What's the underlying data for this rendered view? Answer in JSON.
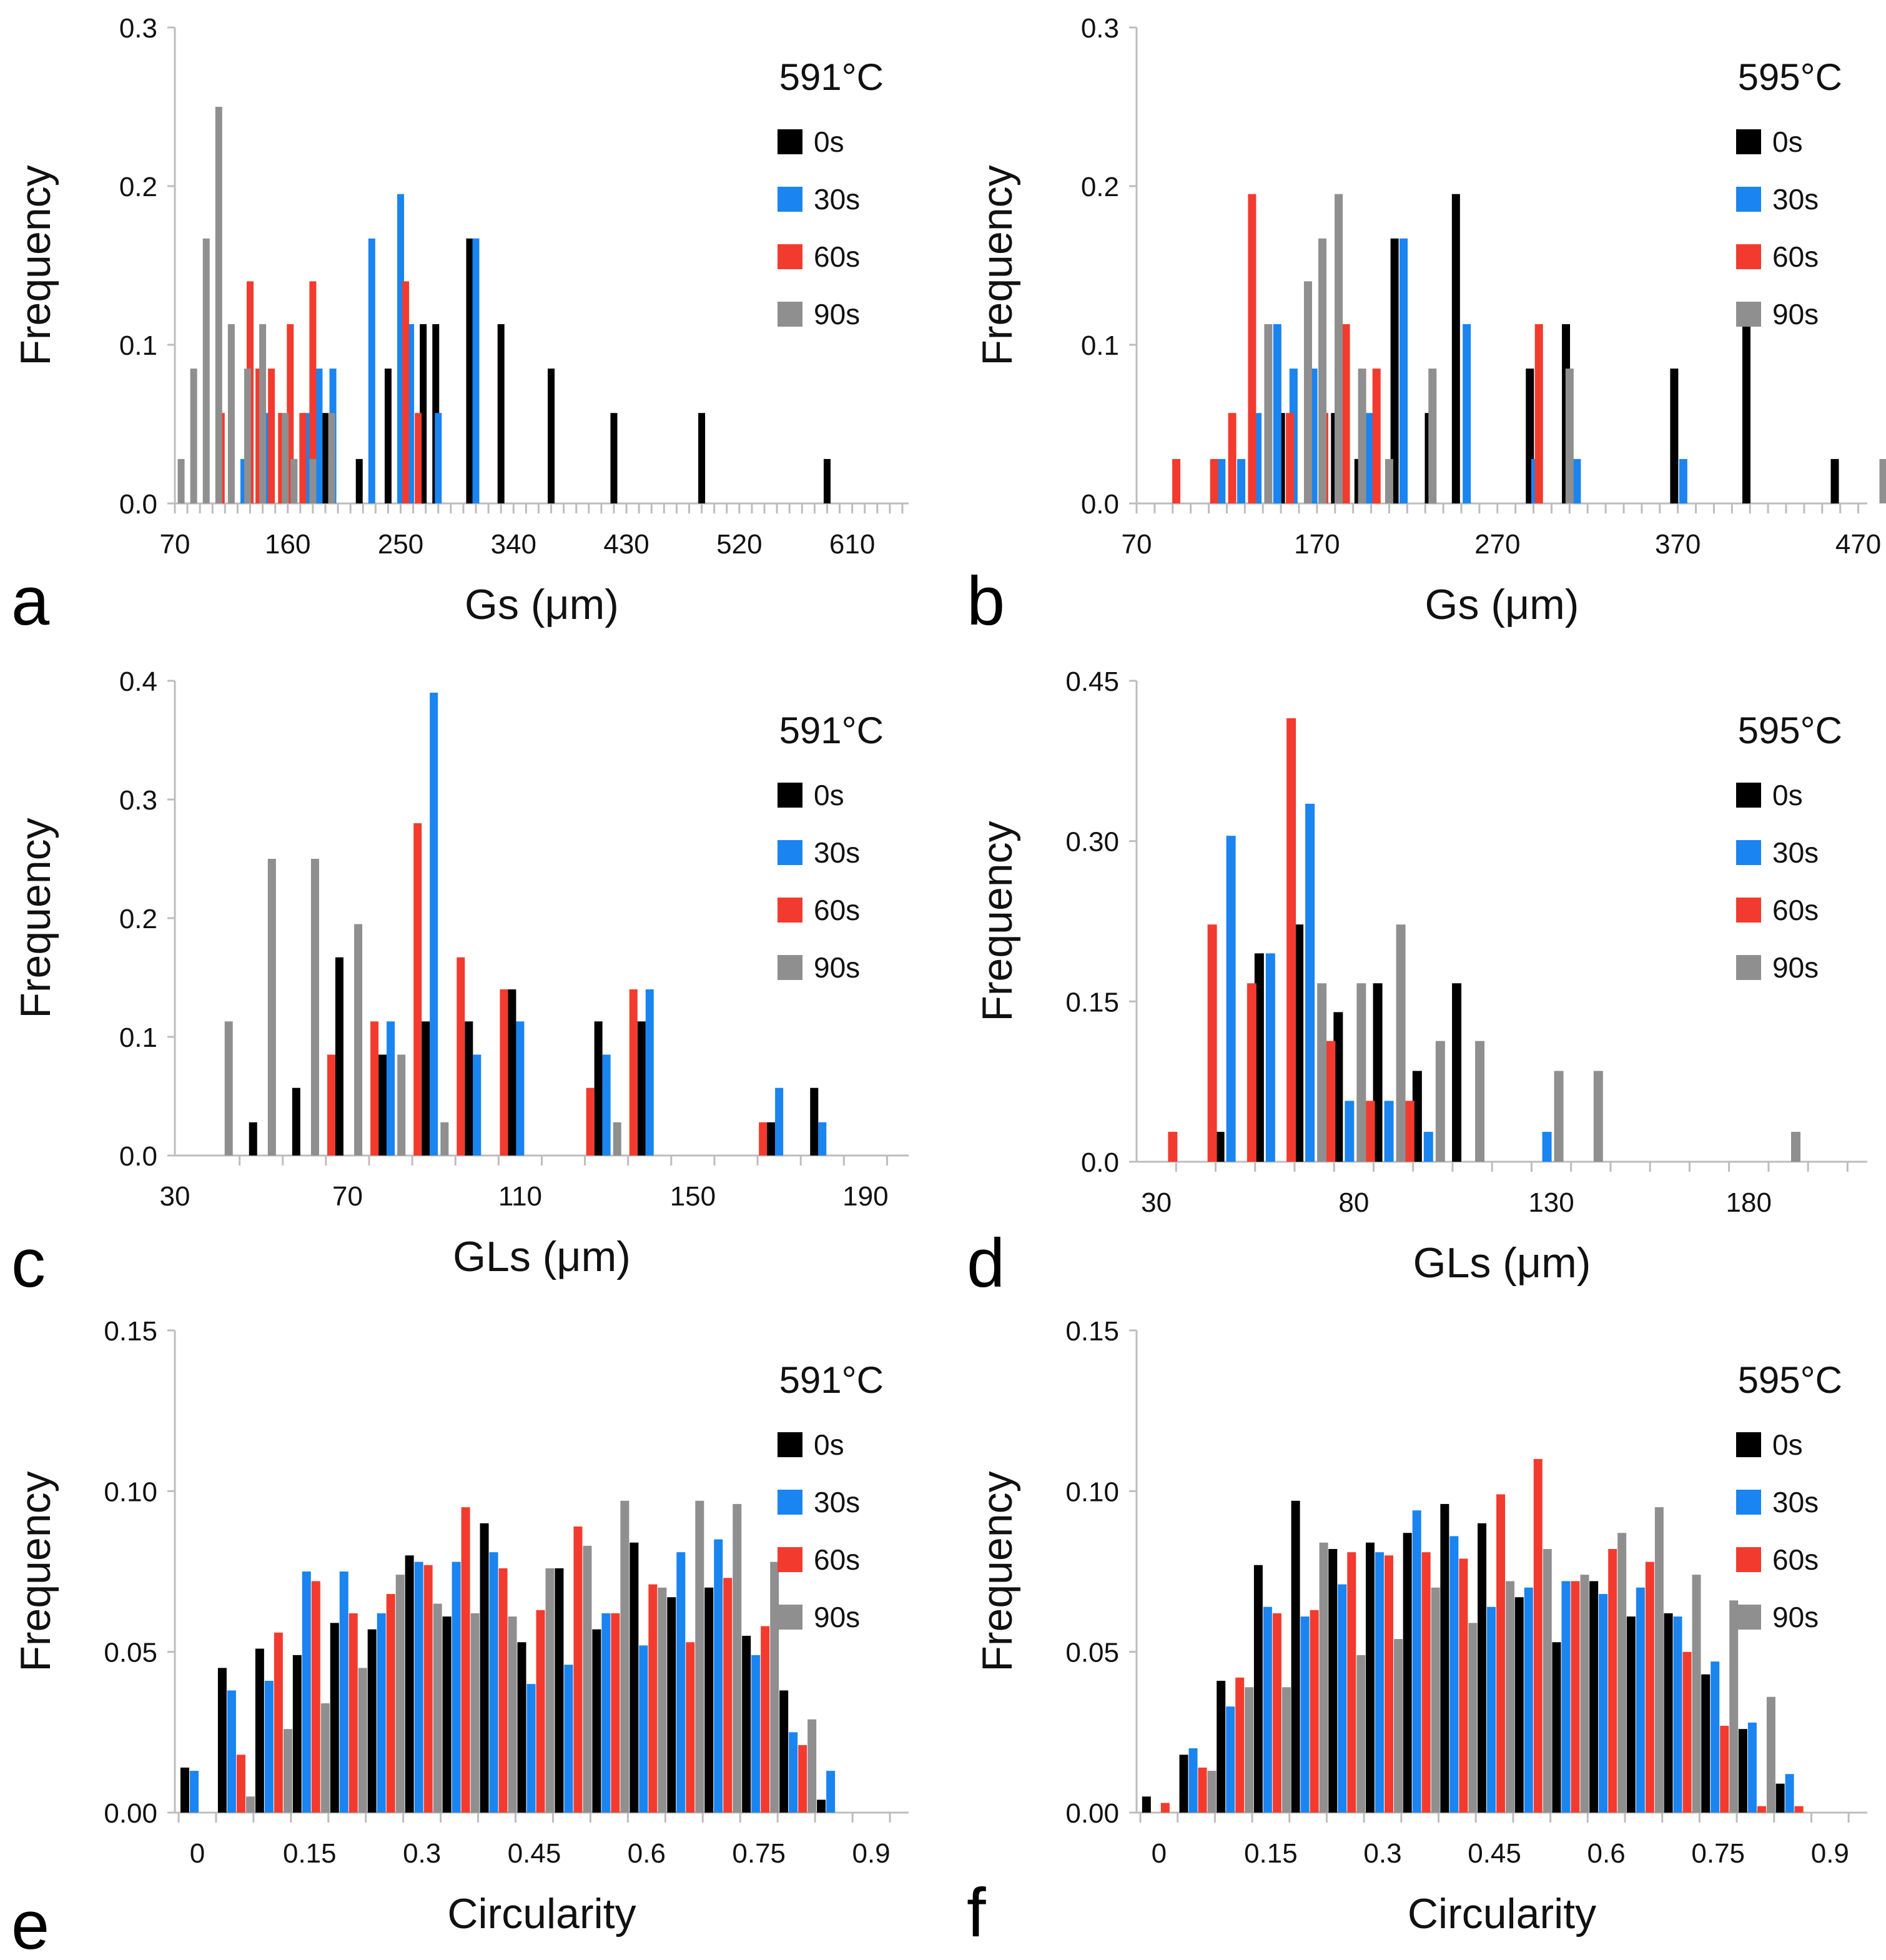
{
  "figure": {
    "series_colors": {
      "0s": "#000000",
      "30s": "#1a84f0",
      "60s": "#f23b2e",
      "90s": "#8f8f8f"
    }
  },
  "chart_data": [
    {
      "panel": "a",
      "type": "bar",
      "title": "591°C",
      "xlabel": "Gs (μm)",
      "ylabel": "Frequency",
      "xlim": [
        70,
        655
      ],
      "xticks": [
        70,
        160,
        250,
        340,
        430,
        520,
        610
      ],
      "ylim": [
        0,
        0.3
      ],
      "yticks": [
        "0.0",
        "0.1",
        "0.2",
        "0.3"
      ],
      "legend": [
        "0s",
        "30s",
        "60s",
        "90s"
      ],
      "series": [
        {
          "name": "0s",
          "points": [
            [
              190,
              0.057
            ],
            [
              217,
              0.028
            ],
            [
              240,
              0.085
            ],
            [
              268,
              0.113
            ],
            [
              278,
              0.113
            ],
            [
              305,
              0.167
            ],
            [
              330,
              0.113
            ],
            [
              370,
              0.085
            ],
            [
              420,
              0.057
            ],
            [
              490,
              0.057
            ],
            [
              590,
              0.028
            ]
          ]
        },
        {
          "name": "30s",
          "points": [
            [
              125,
              0.028
            ],
            [
              145,
              0.057
            ],
            [
              164,
              0.028
            ],
            [
              175,
              0.057
            ],
            [
              185,
              0.085
            ],
            [
              196,
              0.085
            ],
            [
              227,
              0.167
            ],
            [
              250,
              0.195
            ],
            [
              258,
              0.113
            ],
            [
              280,
              0.057
            ],
            [
              310,
              0.167
            ]
          ]
        },
        {
          "name": "60s",
          "points": [
            [
              107,
              0.057
            ],
            [
              130,
              0.14
            ],
            [
              137,
              0.085
            ],
            [
              147,
              0.085
            ],
            [
              155,
              0.057
            ],
            [
              162,
              0.113
            ],
            [
              172,
              0.057
            ],
            [
              180,
              0.14
            ],
            [
              195,
              0.028
            ],
            [
              254,
              0.14
            ],
            [
              264,
              0.057
            ]
          ]
        },
        {
          "name": "90s",
          "points": [
            [
              75,
              0.028
            ],
            [
              85,
              0.085
            ],
            [
              95,
              0.167
            ],
            [
              105,
              0.25
            ],
            [
              115,
              0.113
            ],
            [
              128,
              0.085
            ],
            [
              140,
              0.113
            ],
            [
              158,
              0.057
            ],
            [
              165,
              0.028
            ],
            [
              180,
              0.028
            ],
            [
              195,
              0.057
            ]
          ]
        }
      ]
    },
    {
      "panel": "b",
      "type": "bar",
      "title": "595°C",
      "xlabel": "Gs (μm)",
      "ylabel": "Frequency",
      "xlim": [
        70,
        475
      ],
      "xticks": [
        70,
        170,
        270,
        370,
        470
      ],
      "ylim": [
        0,
        0.3
      ],
      "yticks": [
        "0.0",
        "0.1",
        "0.2",
        "0.3"
      ],
      "legend": [
        "0s",
        "30s",
        "60s",
        "90s"
      ],
      "series": [
        {
          "name": "0s",
          "points": [
            [
              150,
              0.057
            ],
            [
              180,
              0.057
            ],
            [
              193,
              0.028
            ],
            [
              213,
              0.167
            ],
            [
              232,
              0.057
            ],
            [
              247,
              0.195
            ],
            [
              288,
              0.085
            ],
            [
              308,
              0.113
            ],
            [
              368,
              0.085
            ],
            [
              408,
              0.113
            ],
            [
              457,
              0.028
            ]
          ]
        },
        {
          "name": "30s",
          "points": [
            [
              117,
              0.028
            ],
            [
              128,
              0.028
            ],
            [
              137,
              0.057
            ],
            [
              148,
              0.113
            ],
            [
              157,
              0.085
            ],
            [
              168,
              0.085
            ],
            [
              182,
              0.085
            ],
            [
              199,
              0.057
            ],
            [
              218,
              0.167
            ],
            [
              253,
              0.113
            ],
            [
              291,
              0.028
            ],
            [
              314,
              0.028
            ],
            [
              373,
              0.028
            ]
          ]
        },
        {
          "name": "60s",
          "points": [
            [
              92,
              0.028
            ],
            [
              113,
              0.028
            ],
            [
              123,
              0.057
            ],
            [
              134,
              0.195
            ],
            [
              155,
              0.057
            ],
            [
              174,
              0.057
            ],
            [
              186,
              0.113
            ],
            [
              203,
              0.085
            ],
            [
              293,
              0.113
            ]
          ]
        },
        {
          "name": "90s",
          "points": [
            [
              143,
              0.113
            ],
            [
              165,
              0.14
            ],
            [
              173,
              0.167
            ],
            [
              182,
              0.195
            ],
            [
              195,
              0.085
            ],
            [
              210,
              0.028
            ],
            [
              234,
              0.085
            ],
            [
              310,
              0.085
            ],
            [
              484,
              0.028
            ]
          ]
        }
      ]
    },
    {
      "panel": "c",
      "type": "bar",
      "title": "591°C",
      "xlabel": "GLs (μm)",
      "ylabel": "Frequency",
      "xlim": [
        30,
        200
      ],
      "xticks": [
        30,
        70,
        110,
        150,
        190
      ],
      "ylim": [
        0,
        0.4
      ],
      "yticks": [
        "0.0",
        "0.1",
        "0.2",
        "0.3",
        "0.4"
      ],
      "legend": [
        "0s",
        "30s",
        "60s",
        "90s"
      ],
      "categories": [
        50,
        60,
        70,
        80,
        90,
        100,
        110,
        120,
        130,
        140,
        150,
        160,
        170,
        180,
        190
      ],
      "series": [
        {
          "name": "0s",
          "values": [
            0.028,
            0.057,
            0.167,
            0.085,
            0.113,
            0.113,
            0.14,
            0,
            0.113,
            0.113,
            0,
            0,
            0.028,
            0.057,
            0
          ]
        },
        {
          "name": "30s",
          "values": [
            0,
            0,
            0,
            0.113,
            0.39,
            0.085,
            0.113,
            0,
            0.085,
            0.14,
            0,
            0,
            0.057,
            0.028,
            0
          ]
        },
        {
          "name": "60s",
          "values": [
            0,
            0,
            0.085,
            0.113,
            0.28,
            0.167,
            0.14,
            0,
            0.057,
            0.14,
            0,
            0,
            0.028,
            0,
            0
          ]
        },
        {
          "name": "90s",
          "values": [
            0.113,
            0.25,
            0.25,
            0.195,
            0.085,
            0.028,
            0,
            0,
            0,
            0.028,
            0,
            0,
            0,
            0,
            0
          ]
        }
      ]
    },
    {
      "panel": "d",
      "type": "bar",
      "title": "595°C",
      "xlabel": "GLs (μm)",
      "ylabel": "Frequency",
      "xlim": [
        25,
        210
      ],
      "xticks": [
        30,
        80,
        130,
        180
      ],
      "ylim": [
        0,
        0.45
      ],
      "yticks": [
        "0.0",
        "0.15",
        "0.30",
        "0.45"
      ],
      "legend": [
        "0s",
        "30s",
        "60s",
        "90s"
      ],
      "categories": [
        40,
        50,
        60,
        70,
        80,
        90,
        100,
        110,
        120,
        130,
        140,
        150,
        160,
        170,
        180,
        190
      ],
      "series": [
        {
          "name": "0s",
          "values": [
            0,
            0.028,
            0.195,
            0.222,
            0.14,
            0.167,
            0.085,
            0.167,
            0,
            0,
            0,
            0,
            0,
            0,
            0,
            0
          ]
        },
        {
          "name": "30s",
          "values": [
            0,
            0.305,
            0.195,
            0.335,
            0.057,
            0.057,
            0.028,
            0,
            0,
            0.028,
            0,
            0,
            0,
            0,
            0,
            0
          ]
        },
        {
          "name": "60s",
          "values": [
            0.028,
            0.222,
            0.167,
            0.415,
            0.113,
            0.057,
            0.057,
            0,
            0,
            0,
            0,
            0,
            0,
            0,
            0,
            0
          ]
        },
        {
          "name": "90s",
          "values": [
            0,
            0,
            0,
            0.167,
            0.167,
            0.222,
            0.113,
            0.113,
            0,
            0.085,
            0.085,
            0,
            0,
            0,
            0,
            0.028
          ]
        }
      ]
    },
    {
      "panel": "e",
      "type": "bar",
      "title": "591°C",
      "xlabel": "Circularity",
      "ylabel": "Frequency",
      "xlim": [
        -0.03,
        0.95
      ],
      "xticks": [
        "0",
        "0.15",
        "0.3",
        "0.45",
        "0.6",
        "0.75",
        "0.9"
      ],
      "ylim": [
        0,
        0.15
      ],
      "yticks": [
        "0.00",
        "0.05",
        "0.10",
        "0.15"
      ],
      "legend": [
        "0s",
        "30s",
        "60s",
        "90s"
      ],
      "categories": [
        0,
        0.05,
        0.1,
        0.15,
        0.2,
        0.25,
        0.3,
        0.35,
        0.4,
        0.45,
        0.5,
        0.55,
        0.6,
        0.65,
        0.7,
        0.75,
        0.8,
        0.85
      ],
      "series": [
        {
          "name": "0s",
          "values": [
            0.014,
            0.045,
            0.051,
            0.049,
            0.059,
            0.057,
            0.08,
            0.061,
            0.09,
            0.053,
            0.076,
            0.057,
            0.084,
            0.067,
            0.07,
            0.055,
            0.038,
            0.004
          ]
        },
        {
          "name": "30s",
          "values": [
            0.013,
            0.038,
            0.041,
            0.075,
            0.075,
            0.062,
            0.078,
            0.078,
            0.081,
            0.04,
            0.046,
            0.062,
            0.052,
            0.081,
            0.085,
            0.049,
            0.025,
            0.013
          ]
        },
        {
          "name": "60s",
          "values": [
            0,
            0.018,
            0.056,
            0.072,
            0.062,
            0.068,
            0.077,
            0.095,
            0.076,
            0.063,
            0.089,
            0.062,
            0.071,
            0.053,
            0.073,
            0.058,
            0.021,
            0
          ]
        },
        {
          "name": "90s",
          "values": [
            0,
            0.005,
            0.026,
            0.034,
            0.045,
            0.074,
            0.065,
            0.062,
            0.061,
            0.076,
            0.083,
            0.097,
            0.07,
            0.097,
            0.096,
            0.078,
            0.029,
            0
          ]
        }
      ]
    },
    {
      "panel": "f",
      "type": "bar",
      "title": "595°C",
      "xlabel": "Circularity",
      "ylabel": "Frequency",
      "xlim": [
        -0.03,
        0.95
      ],
      "xticks": [
        "0",
        "0.15",
        "0.3",
        "0.45",
        "0.6",
        "0.75",
        "0.9"
      ],
      "ylim": [
        0,
        0.15
      ],
      "yticks": [
        "0.00",
        "0.05",
        "0.10",
        "0.15"
      ],
      "legend": [
        "0s",
        "30s",
        "60s",
        "90s"
      ],
      "categories": [
        0,
        0.05,
        0.1,
        0.15,
        0.2,
        0.25,
        0.3,
        0.35,
        0.4,
        0.45,
        0.5,
        0.55,
        0.6,
        0.65,
        0.7,
        0.75,
        0.8,
        0.85
      ],
      "series": [
        {
          "name": "0s",
          "values": [
            0.005,
            0.018,
            0.041,
            0.077,
            0.097,
            0.082,
            0.084,
            0.087,
            0.096,
            0.09,
            0.067,
            0.053,
            0.072,
            0.061,
            0.062,
            0.043,
            0.026,
            0.009
          ]
        },
        {
          "name": "30s",
          "values": [
            0,
            0.02,
            0.033,
            0.064,
            0.061,
            0.071,
            0.081,
            0.094,
            0.086,
            0.064,
            0.07,
            0.072,
            0.068,
            0.07,
            0.061,
            0.047,
            0.028,
            0.012
          ]
        },
        {
          "name": "60s",
          "values": [
            0.003,
            0.014,
            0.042,
            0.062,
            0.063,
            0.081,
            0.08,
            0.081,
            0.079,
            0.099,
            0.11,
            0.072,
            0.082,
            0.078,
            0.05,
            0.027,
            0.002,
            0.002
          ]
        },
        {
          "name": "90s",
          "values": [
            0,
            0.013,
            0.039,
            0.039,
            0.084,
            0.049,
            0.054,
            0.07,
            0.059,
            0.072,
            0.082,
            0.074,
            0.087,
            0.095,
            0.074,
            0.066,
            0.036,
            0
          ]
        }
      ]
    }
  ]
}
